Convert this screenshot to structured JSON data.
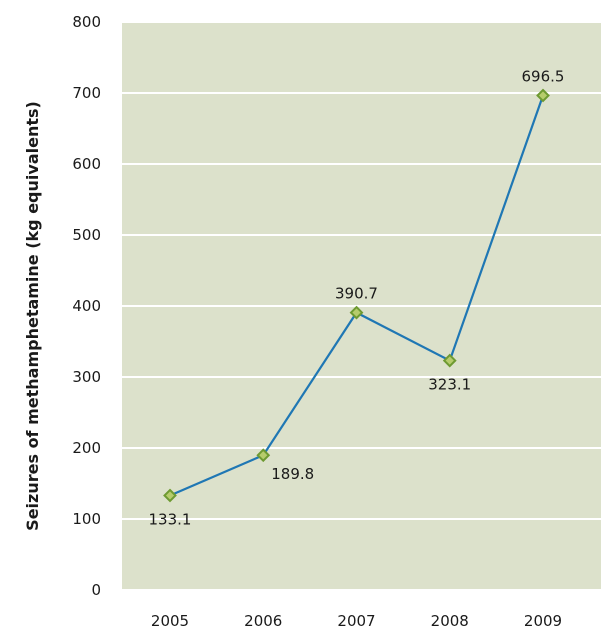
{
  "chart_data": {
    "type": "line",
    "title": "",
    "xlabel": "",
    "ylabel": "Seizures of methamphetamine (kg equivalents)",
    "categories": [
      "2005",
      "2006",
      "2007",
      "2008",
      "2009"
    ],
    "series": [
      {
        "name": "",
        "values": [
          133.1,
          189.8,
          390.7,
          323.1,
          696.5
        ],
        "labels": [
          "133.1",
          "189.8",
          "390.7",
          "323.1",
          "696.5"
        ],
        "label_positions": [
          "below",
          "below-right",
          "above",
          "below",
          "above"
        ]
      }
    ],
    "ylim": [
      0,
      800
    ],
    "yticks": [
      "0",
      "100",
      "200",
      "300",
      "400",
      "500",
      "600",
      "700",
      "800"
    ],
    "grid": true,
    "colors": {
      "plot_background": "#dce1cb",
      "gridline": "#ffffff",
      "line": "#1f77b4",
      "marker_fill": "#b6cc6c",
      "marker_stroke": "#6e9a32"
    }
  }
}
